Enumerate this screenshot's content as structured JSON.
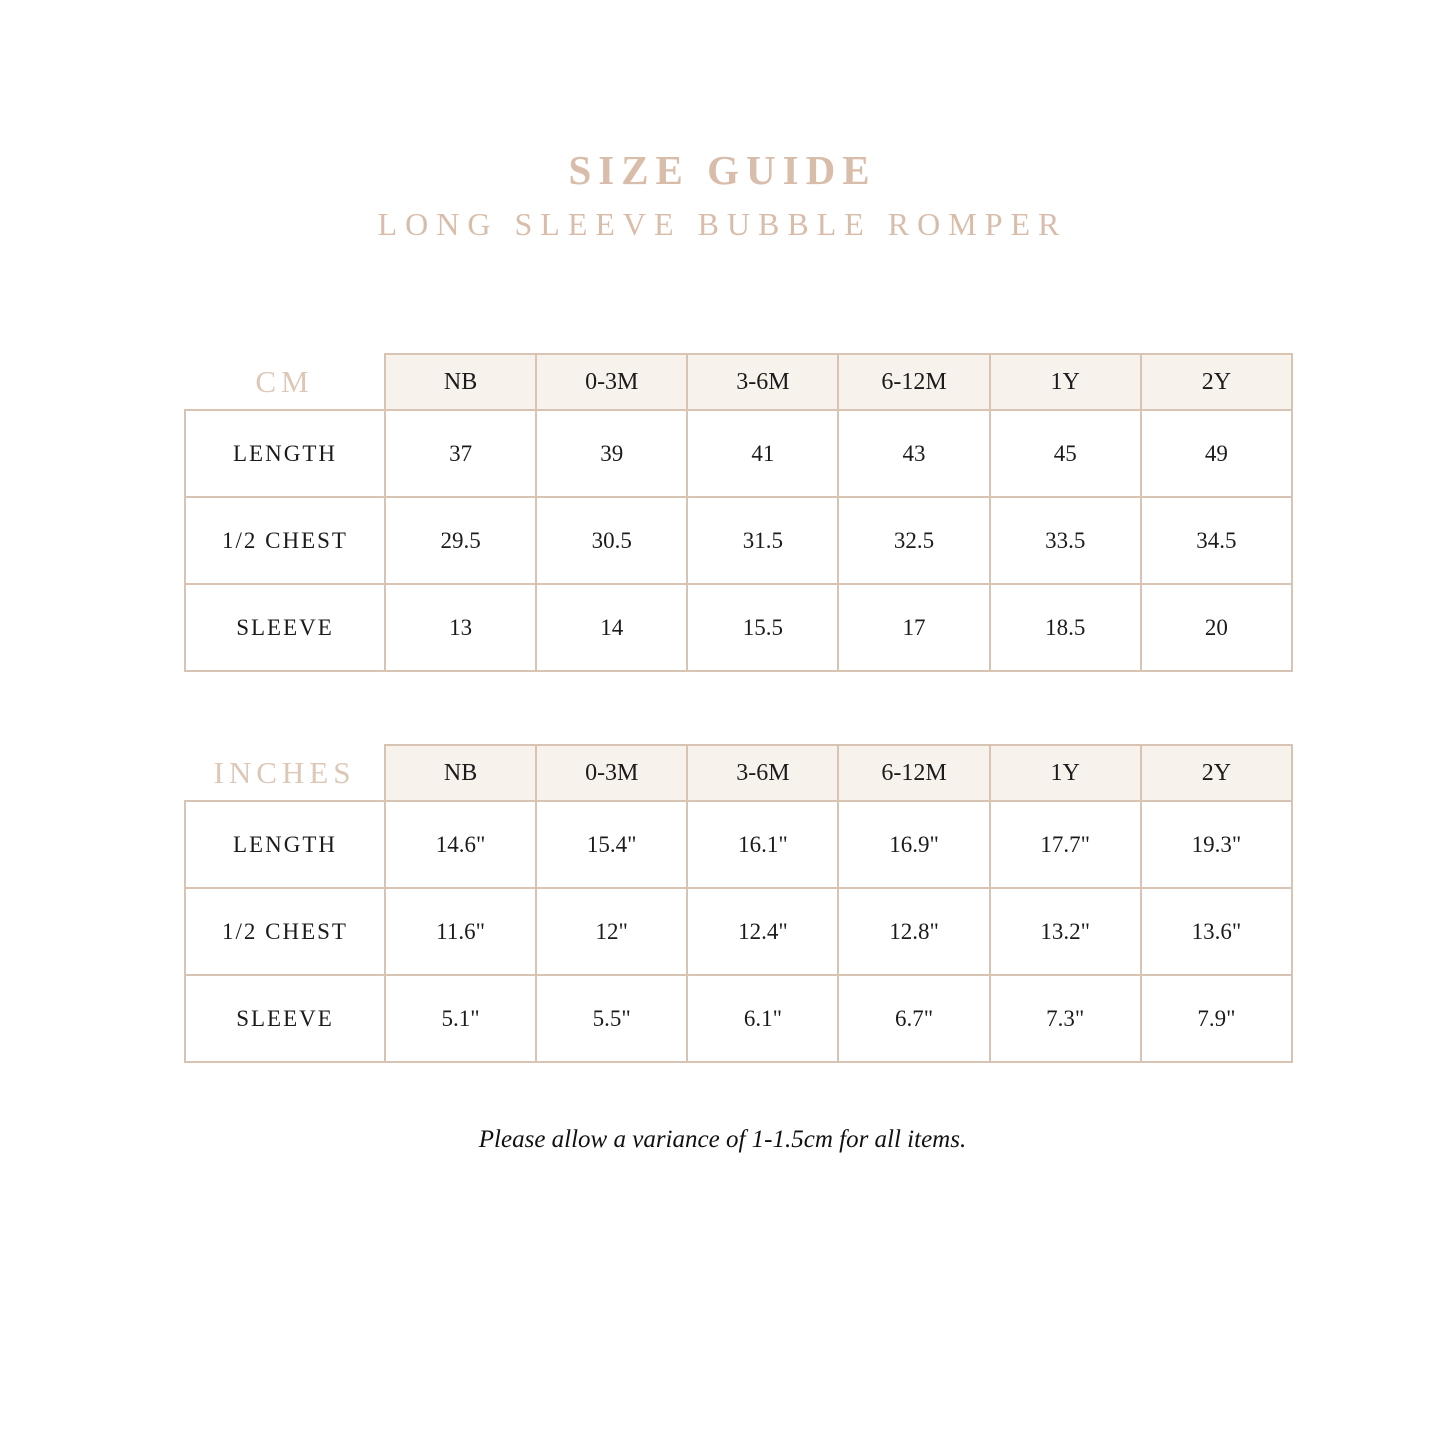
{
  "page": {
    "title": "SIZE GUIDE",
    "subtitle": "LONG SLEEVE BUBBLE ROMPER",
    "footnote": "Please allow a variance of 1-1.5cm for all items."
  },
  "colors": {
    "accent_text": "#d9bdab",
    "unit_label_text": "#ddc8b8",
    "table_border": "#d9c3b3",
    "header_bg": "#f8f2ed",
    "body_text": "#1b1b1b"
  },
  "sizes": [
    "NB",
    "0-3M",
    "3-6M",
    "6-12M",
    "1Y",
    "2Y"
  ],
  "cm_table": {
    "unit_label": "CM",
    "rows": [
      {
        "label": "LENGTH",
        "values": [
          "37",
          "39",
          "41",
          "43",
          "45",
          "49"
        ]
      },
      {
        "label": "1/2 CHEST",
        "values": [
          "29.5",
          "30.5",
          "31.5",
          "32.5",
          "33.5",
          "34.5"
        ]
      },
      {
        "label": "SLEEVE",
        "values": [
          "13",
          "14",
          "15.5",
          "17",
          "18.5",
          "20"
        ]
      }
    ]
  },
  "inches_table": {
    "unit_label": "INCHES",
    "rows": [
      {
        "label": "LENGTH",
        "values": [
          "14.6\"",
          "15.4\"",
          "16.1\"",
          "16.9\"",
          "17.7\"",
          "19.3\""
        ]
      },
      {
        "label": "1/2 CHEST",
        "values": [
          "11.6\"",
          "12\"",
          "12.4\"",
          "12.8\"",
          "13.2\"",
          "13.6\""
        ]
      },
      {
        "label": "SLEEVE",
        "values": [
          "5.1\"",
          "5.5\"",
          "6.1\"",
          "6.7\"",
          "7.3\"",
          "7.9\""
        ]
      }
    ]
  }
}
